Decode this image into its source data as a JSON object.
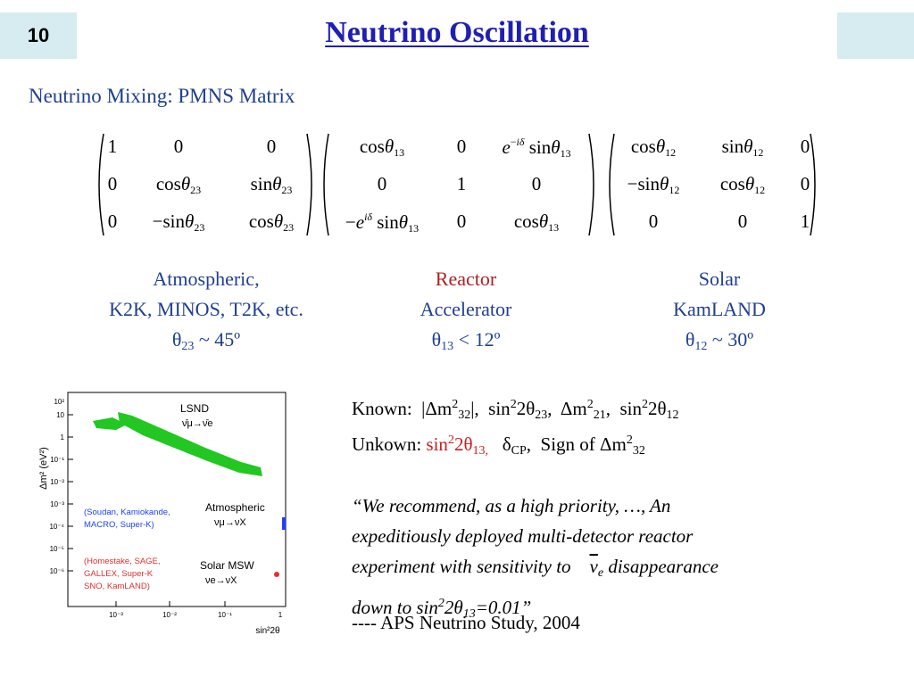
{
  "slide": {
    "number": "10",
    "title": "Neutrino Oscillation"
  },
  "subtitle": "Neutrino Mixing: PMNS Matrix",
  "matrices": {
    "m1": [
      [
        "1",
        "0",
        "0"
      ],
      [
        "0",
        "cosθ23",
        "sinθ23"
      ],
      [
        "0",
        "−sinθ23",
        "cosθ23"
      ]
    ],
    "m2": [
      [
        "cosθ13",
        "0",
        "e−iδ sinθ13"
      ],
      [
        "0",
        "1",
        "0"
      ],
      [
        "−eiδ sinθ13",
        "0",
        "cosθ13"
      ]
    ],
    "m3": [
      [
        "cosθ12",
        "sinθ12",
        "0"
      ],
      [
        "−sinθ12",
        "cosθ12",
        "0"
      ],
      [
        "0",
        "0",
        "1"
      ]
    ]
  },
  "columns": {
    "atmospheric": {
      "line1": "Atmospheric,",
      "line2": "K2K, MINOS, T2K, etc.",
      "angle": "θ",
      "sub": "23",
      "value": " ~ 45º"
    },
    "reactor": {
      "line1": "Reactor",
      "line2": "Accelerator",
      "angle": "θ",
      "sub": "13",
      "value": " < 12º"
    },
    "solar": {
      "line1": "Solar",
      "line2": "KamLAND",
      "angle": "θ",
      "sub": "12",
      "value": " ~ 30º"
    }
  },
  "plot": {
    "ylabel": "Δm² (eV²)",
    "xlabel": "sin²2θ",
    "y_ticks": [
      "10²",
      "10",
      "1",
      "10⁻¹",
      "10⁻²",
      "10⁻³",
      "10⁻⁴",
      "10⁻⁵",
      "10⁻⁶"
    ],
    "x_ticks": [
      "10⁻³",
      "10⁻²",
      "10⁻¹",
      "1"
    ],
    "lsnd_label": "LSND",
    "lsnd_channel": "ν̄μ→ν̄e",
    "atm_label": "Atmospheric",
    "atm_channel": "νμ→νX",
    "atm_experiments_1": "(Soudan, Kamiokande,",
    "atm_experiments_2": "MACRO, Super-K)",
    "solar_label": "Solar MSW",
    "solar_channel": "νe→νX",
    "solar_experiments_1": "(Homestake, SAGE,",
    "solar_experiments_2": "GALLEX, Super-K",
    "solar_experiments_3": "SNO, KamLAND)",
    "colors": {
      "lsnd": "#22c722",
      "atm": "#1e40ff",
      "solar": "#e03030"
    }
  },
  "info": {
    "known_label": "Known:",
    "unknown_label": "Unkown:",
    "sign_text": "Sign of Δm",
    "quote_1": "“We recommend, as a high priority, …, An",
    "quote_2": "expeditiously deployed multi-detector reactor",
    "quote_3": "experiment with sensitivity to",
    "quote_3b": "disappearance",
    "quote_4a": "down to sin",
    "quote_4b": "=0.01”",
    "attribution": "---- APS Neutrino Study, 2004"
  }
}
